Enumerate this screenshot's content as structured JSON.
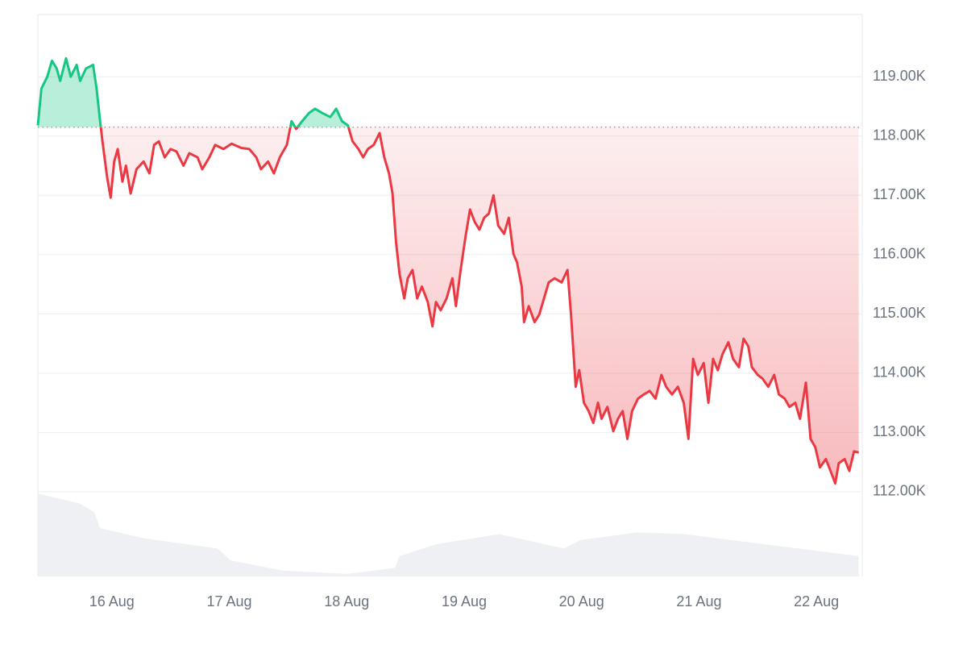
{
  "chart_data": {
    "type": "line",
    "x": [
      15.37,
      15.4,
      15.45,
      15.49,
      15.53,
      15.56,
      15.61,
      15.65,
      15.7,
      15.73,
      15.78,
      15.84,
      15.87,
      15.9,
      15.92,
      15.96,
      15.99,
      16.02,
      16.05,
      16.09,
      16.12,
      16.16,
      16.21,
      16.27,
      16.32,
      16.36,
      16.4,
      16.45,
      16.5,
      16.55,
      16.61,
      16.66,
      16.73,
      16.77,
      16.83,
      16.88,
      16.95,
      17.02,
      17.1,
      17.17,
      17.23,
      17.27,
      17.33,
      17.38,
      17.43,
      17.49,
      17.53,
      17.57,
      17.62,
      17.68,
      17.73,
      17.79,
      17.86,
      17.91,
      17.96,
      18.01,
      18.05,
      18.1,
      18.14,
      18.18,
      18.23,
      18.28,
      18.32,
      18.36,
      18.39,
      18.42,
      18.45,
      18.49,
      18.52,
      18.56,
      18.6,
      18.64,
      18.69,
      18.73,
      18.76,
      18.8,
      18.85,
      18.9,
      18.93,
      18.97,
      19.01,
      19.05,
      19.09,
      19.13,
      19.17,
      19.21,
      19.25,
      19.29,
      19.34,
      19.38,
      19.42,
      19.45,
      19.49,
      19.51,
      19.55,
      19.6,
      19.64,
      19.68,
      19.72,
      19.77,
      19.83,
      19.88,
      19.91,
      19.95,
      19.98,
      20.02,
      20.06,
      20.1,
      20.14,
      20.17,
      20.22,
      20.27,
      20.31,
      20.35,
      20.39,
      20.43,
      20.48,
      20.53,
      20.58,
      20.63,
      20.68,
      20.72,
      20.77,
      20.82,
      20.87,
      20.91,
      20.95,
      20.99,
      21.04,
      21.08,
      21.12,
      21.16,
      21.2,
      21.25,
      21.29,
      21.34,
      21.38,
      21.42,
      21.45,
      21.5,
      21.54,
      21.59,
      21.64,
      21.68,
      21.73,
      21.77,
      21.82,
      21.86,
      21.91,
      21.95,
      21.99,
      22.03,
      22.08,
      22.12,
      22.16,
      22.19,
      22.24,
      22.28,
      22.32,
      22.36
    ],
    "values": [
      118180,
      118800,
      119000,
      119270,
      119140,
      118930,
      119310,
      119000,
      119200,
      118930,
      119140,
      119200,
      118800,
      118250,
      117910,
      117300,
      116960,
      117570,
      117780,
      117230,
      117500,
      117030,
      117440,
      117570,
      117370,
      117850,
      117910,
      117640,
      117780,
      117740,
      117500,
      117710,
      117640,
      117440,
      117640,
      117850,
      117780,
      117870,
      117800,
      117780,
      117640,
      117440,
      117570,
      117370,
      117640,
      117850,
      118250,
      118120,
      118250,
      118390,
      118460,
      118390,
      118320,
      118460,
      118250,
      118180,
      117910,
      117780,
      117640,
      117780,
      117850,
      118050,
      117640,
      117370,
      117030,
      116210,
      115670,
      115260,
      115600,
      115740,
      115260,
      115460,
      115200,
      114790,
      115200,
      115060,
      115260,
      115600,
      115130,
      115740,
      116280,
      116760,
      116550,
      116420,
      116620,
      116690,
      117000,
      116490,
      116350,
      116620,
      116010,
      115870,
      115460,
      114860,
      115130,
      114860,
      114990,
      115260,
      115530,
      115600,
      115530,
      115740,
      114990,
      113770,
      114050,
      113500,
      113360,
      113160,
      113500,
      113230,
      113430,
      113020,
      113230,
      113360,
      112890,
      113360,
      113570,
      113640,
      113700,
      113570,
      113970,
      113770,
      113640,
      113770,
      113500,
      112890,
      114240,
      113970,
      114170,
      113500,
      114240,
      114050,
      114320,
      114520,
      114240,
      114100,
      114580,
      114450,
      114100,
      113970,
      113910,
      113770,
      113970,
      113640,
      113570,
      113430,
      113500,
      113230,
      113840,
      112890,
      112750,
      112410,
      112550,
      112350,
      112140,
      112480,
      112550,
      112350,
      112680,
      112660
    ],
    "baseline": 118150,
    "up_color": "#16c784",
    "down_color": "#ea3943",
    "volume": {
      "x": [
        15.37,
        15.73,
        15.85,
        15.9,
        16.28,
        16.9,
        17.01,
        17.45,
        18.0,
        18.41,
        18.45,
        18.76,
        19.3,
        19.85,
        19.99,
        20.47,
        20.88,
        21.56,
        22.36
      ],
      "values": [
        98,
        86,
        76,
        57,
        45,
        33,
        19,
        7,
        3,
        10,
        24,
        38,
        50,
        33,
        43,
        52,
        50,
        38,
        24
      ],
      "ylim": [
        0,
        100
      ],
      "color": "#eef0f3"
    },
    "xlim": [
      15.37,
      22.39
    ],
    "ylim": [
      110570,
      120050
    ],
    "xticks": [
      {
        "value": 16,
        "label": "16 Aug"
      },
      {
        "value": 17,
        "label": "17 Aug"
      },
      {
        "value": 18,
        "label": "18 Aug"
      },
      {
        "value": 19,
        "label": "19 Aug"
      },
      {
        "value": 20,
        "label": "20 Aug"
      },
      {
        "value": 21,
        "label": "21 Aug"
      },
      {
        "value": 22,
        "label": "22 Aug"
      }
    ],
    "yticks": [
      {
        "value": 112000,
        "label": "112.00K"
      },
      {
        "value": 113000,
        "label": "113.00K"
      },
      {
        "value": 114000,
        "label": "114.00K"
      },
      {
        "value": 115000,
        "label": "115.00K"
      },
      {
        "value": 116000,
        "label": "116.00K"
      },
      {
        "value": 117000,
        "label": "117.00K"
      },
      {
        "value": 118000,
        "label": "118.00K"
      },
      {
        "value": 119000,
        "label": "119.00K"
      }
    ],
    "grid": true
  }
}
